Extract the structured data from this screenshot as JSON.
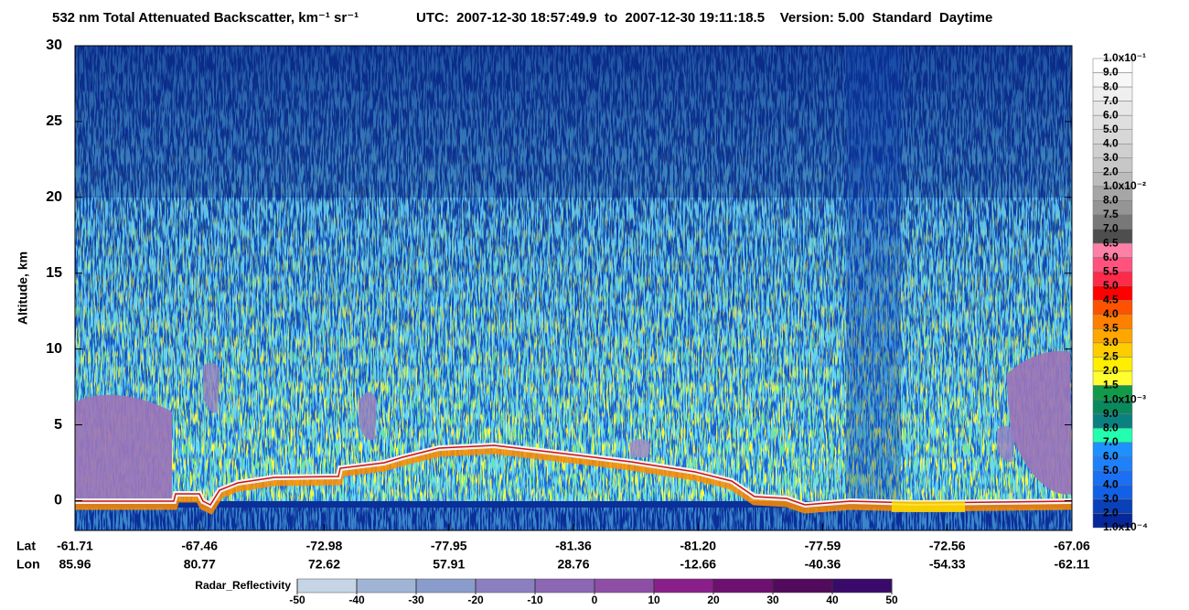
{
  "chart_data": {
    "type": "curtain",
    "title": "532 nm Total Attenuated Backscatter, km⁻¹ sr⁻¹",
    "subtitle": "UTC:  2007-12-30 18:57:49.9  to  2007-12-30 19:11:18.5    Version: 5.00  Standard  Daytime",
    "ylabel": "Altitude, km",
    "ylim": [
      -2,
      30
    ],
    "yticks": [
      0,
      5,
      10,
      15,
      20,
      25,
      30
    ],
    "lat_label": "Lat",
    "lon_label": "Lon",
    "lat": [
      "-61.71",
      "-67.46",
      "-72.98",
      "-77.95",
      "-81.36",
      "-81.20",
      "-77.59",
      "-72.56",
      "-67.06"
    ],
    "lon": [
      "85.96",
      "80.77",
      "72.62",
      "57.91",
      "28.76",
      "-12.66",
      "-40.36",
      "-54.33",
      "-62.11"
    ],
    "colorbar": {
      "labels": [
        "1.0x10⁻¹",
        "9.0",
        "8.0",
        "7.0",
        "6.0",
        "5.0",
        "4.0",
        "3.0",
        "2.0",
        "1.0x10⁻²",
        "8.0",
        "7.5",
        "7.0",
        "6.5",
        "6.0",
        "5.5",
        "5.0",
        "4.5",
        "4.0",
        "3.5",
        "3.0",
        "2.5",
        "2.0",
        "1.5",
        "1.0x10⁻³",
        "9.0",
        "8.0",
        "7.0",
        "6.0",
        "5.0",
        "4.0",
        "3.0",
        "2.0",
        "1.0x10⁻⁴"
      ],
      "colors": [
        "#ffffff",
        "#f7f7f7",
        "#efefef",
        "#e7e7e7",
        "#dfdfdf",
        "#d7d7d7",
        "#cfcfcf",
        "#c7c7c7",
        "#bcbcbc",
        "#a6a6a6",
        "#959595",
        "#787878",
        "#4e4e4e",
        "#ff80a6",
        "#ff527c",
        "#ff2a4a",
        "#ff0000",
        "#ff5200",
        "#ff8000",
        "#ffa600",
        "#ffcc00",
        "#ffee00",
        "#ffff30",
        "#119a4a",
        "#0a8a5c",
        "#0b8080",
        "#22ffae",
        "#1e90ff",
        "#1f80fa",
        "#1a6ff2",
        "#1260e6",
        "#0a40b8",
        "#06289a"
      ]
    },
    "radar_colorbar": {
      "label": "Radar_Reflectivity",
      "ticks": [
        -50,
        -40,
        -30,
        -20,
        -10,
        0,
        10,
        20,
        30,
        40,
        50
      ],
      "colors": [
        "#c5d5e6",
        "#a0b4d6",
        "#8a9ccb",
        "#8b7fc2",
        "#8c67b4",
        "#8e4ea6",
        "#8a1f8c",
        "#6d1070",
        "#520a5c",
        "#3a0a6a"
      ]
    }
  }
}
